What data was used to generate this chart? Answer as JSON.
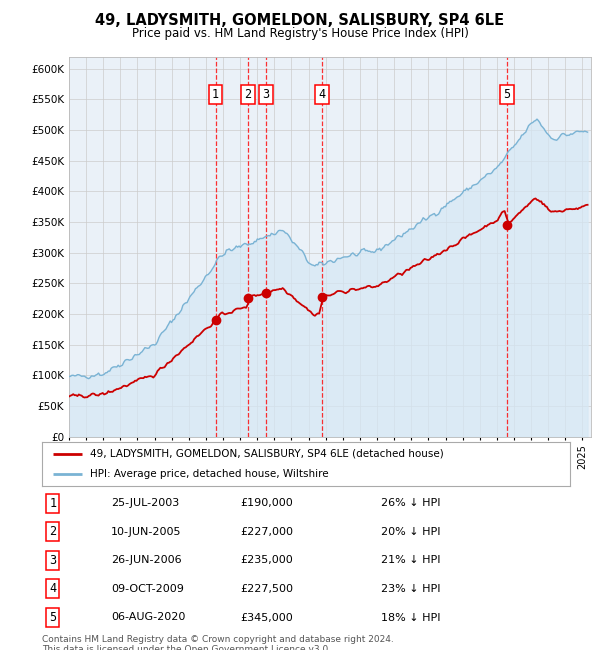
{
  "title": "49, LADYSMITH, GOMELDON, SALISBURY, SP4 6LE",
  "subtitle": "Price paid vs. HM Land Registry's House Price Index (HPI)",
  "ylabel_ticks": [
    "£0",
    "£50K",
    "£100K",
    "£150K",
    "£200K",
    "£250K",
    "£300K",
    "£350K",
    "£400K",
    "£450K",
    "£500K",
    "£550K",
    "£600K"
  ],
  "ytick_values": [
    0,
    50000,
    100000,
    150000,
    200000,
    250000,
    300000,
    350000,
    400000,
    450000,
    500000,
    550000,
    600000
  ],
  "ylim": [
    0,
    620000
  ],
  "xlim_start": 1995.0,
  "xlim_end": 2025.5,
  "sale_dates": [
    2003.56,
    2005.44,
    2006.49,
    2009.77,
    2020.59
  ],
  "sale_prices": [
    190000,
    227000,
    235000,
    227500,
    345000
  ],
  "sale_labels": [
    "1",
    "2",
    "3",
    "4",
    "5"
  ],
  "legend_line1": "49, LADYSMITH, GOMELDON, SALISBURY, SP4 6LE (detached house)",
  "legend_line2": "HPI: Average price, detached house, Wiltshire",
  "table_data": [
    [
      "1",
      "25-JUL-2003",
      "£190,000",
      "26% ↓ HPI"
    ],
    [
      "2",
      "10-JUN-2005",
      "£227,000",
      "20% ↓ HPI"
    ],
    [
      "3",
      "26-JUN-2006",
      "£235,000",
      "21% ↓ HPI"
    ],
    [
      "4",
      "09-OCT-2009",
      "£227,500",
      "23% ↓ HPI"
    ],
    [
      "5",
      "06-AUG-2020",
      "£345,000",
      "18% ↓ HPI"
    ]
  ],
  "footnote": "Contains HM Land Registry data © Crown copyright and database right 2024.\nThis data is licensed under the Open Government Licence v3.0.",
  "hpi_color": "#7ab3d4",
  "hpi_fill_color": "#d6e8f5",
  "sale_color": "#cc0000",
  "grid_color": "#cccccc",
  "background_color": "#ffffff",
  "plot_bg_color": "#eaf1f8"
}
